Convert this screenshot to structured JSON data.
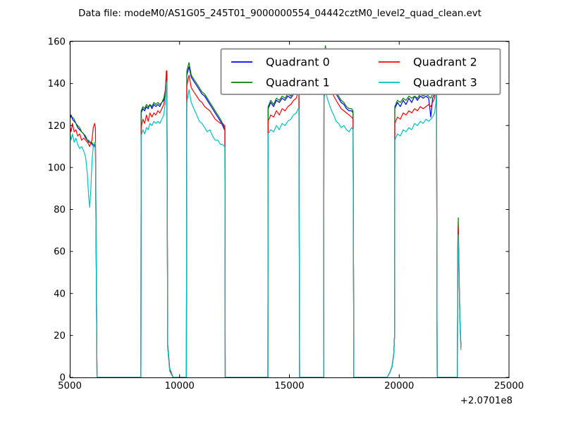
{
  "figure": {
    "title": "Data file: modeM0/AS1G05_245T01_9000000554_04442cztM0_level2_quad_clean.evt",
    "background": "#ffffff"
  },
  "chart_data": {
    "type": "line",
    "title": "Data file: modeM0/AS1G05_245T01_9000000554_04442cztM0_level2_quad_clean.evt",
    "xlabel": "",
    "ylabel": "",
    "grid": false,
    "legend_position": "upper center, 2 columns, framed",
    "xlim": [
      5000,
      25000
    ],
    "ylim": [
      0,
      160
    ],
    "x_ticks": [
      5000,
      10000,
      15000,
      20000,
      25000
    ],
    "y_ticks": [
      0,
      20,
      40,
      60,
      80,
      100,
      120,
      140,
      160
    ],
    "x_offset": "+2.0701e8",
    "series": [
      {
        "name": "Quadrant 0",
        "color": "#0000ff"
      },
      {
        "name": "Quadrant 1",
        "color": "#008000"
      },
      {
        "name": "Quadrant 2",
        "color": "#ff0000"
      },
      {
        "name": "Quadrant 3",
        "color": "#00bfbf"
      }
    ],
    "bursts": [
      {
        "x": [
          5000,
          5060,
          5120,
          5200,
          5280,
          5360,
          5450,
          5540,
          5630,
          5720,
          5800,
          5860,
          5910,
          5960,
          6010,
          6070,
          6130,
          6170,
          6240
        ],
        "values": [
          [
            123,
            125,
            123,
            122,
            121,
            119,
            118,
            117,
            116,
            114,
            113,
            112,
            112,
            112,
            111,
            111,
            110,
            110,
            0
          ],
          [
            124,
            124,
            124,
            123,
            121,
            120,
            119,
            117,
            116,
            115,
            113,
            113,
            112,
            112,
            112,
            110,
            111,
            110,
            0
          ],
          [
            120,
            117,
            121,
            117,
            118,
            115,
            116,
            113,
            114,
            113,
            112,
            111,
            110,
            112,
            113,
            119,
            121,
            119,
            0
          ],
          [
            117,
            113,
            116,
            112,
            114,
            111,
            109,
            110,
            108,
            105,
            97,
            86,
            81,
            90,
            103,
            110,
            112,
            112,
            0
          ]
        ]
      },
      {
        "x": [
          8240,
          8250,
          8330,
          8410,
          8490,
          8570,
          8650,
          8740,
          8830,
          8920,
          9010,
          9100,
          9190,
          9280,
          9350,
          9395,
          9420,
          9460,
          9550,
          9700
        ],
        "values": [
          [
            0,
            126,
            128,
            127,
            129,
            128,
            130,
            128,
            130,
            129,
            130,
            129,
            131,
            132,
            136,
            143,
            144,
            15,
            4,
            0
          ],
          [
            0,
            127,
            129,
            128,
            130,
            129,
            130,
            129,
            131,
            130,
            131,
            130,
            131,
            133,
            137,
            144,
            145,
            15,
            4,
            0
          ],
          [
            0,
            119,
            123,
            121,
            125,
            122,
            126,
            124,
            126,
            125,
            127,
            126,
            128,
            130,
            135,
            146,
            146,
            16,
            4,
            0
          ],
          [
            0,
            115,
            118,
            116,
            119,
            118,
            121,
            120,
            122,
            121,
            122,
            121,
            123,
            125,
            131,
            140,
            141,
            14,
            3,
            0
          ]
        ]
      },
      {
        "x": [
          10310,
          10330,
          10430,
          10530,
          10650,
          10780,
          10900,
          11020,
          11140,
          11260,
          11380,
          11500,
          11620,
          11740,
          11860,
          11960,
          12040,
          12062,
          12080
        ],
        "values": [
          [
            0,
            144,
            148,
            143,
            141,
            139,
            137,
            135,
            134,
            132,
            130,
            128,
            126,
            124,
            122,
            120,
            118,
            118,
            0
          ],
          [
            0,
            146,
            150,
            144,
            142,
            140,
            138,
            136,
            135,
            133,
            131,
            129,
            127,
            125,
            123,
            121,
            119,
            119,
            0
          ],
          [
            0,
            139,
            144,
            138,
            136,
            134,
            132,
            131,
            129,
            128,
            127,
            125,
            123,
            122,
            121,
            121,
            120,
            120,
            0
          ],
          [
            0,
            131,
            137,
            131,
            128,
            125,
            122,
            121,
            119,
            117,
            118,
            115,
            113,
            113,
            111,
            111,
            110,
            110,
            0
          ]
        ]
      },
      {
        "x": [
          14020,
          14030,
          14150,
          14280,
          14410,
          14540,
          14670,
          14800,
          14930,
          15060,
          15190,
          15310,
          15400,
          15433,
          15465
        ],
        "values": [
          [
            0,
            128,
            131,
            129,
            132,
            131,
            133,
            132,
            134,
            133,
            135,
            136,
            137,
            137,
            0
          ],
          [
            0,
            129,
            132,
            130,
            133,
            132,
            134,
            133,
            135,
            134,
            136,
            137,
            141,
            139,
            0
          ],
          [
            0,
            122,
            125,
            124,
            127,
            125,
            128,
            127,
            129,
            130,
            132,
            133,
            136,
            136,
            0
          ],
          [
            0,
            116,
            118,
            117,
            120,
            118,
            121,
            120,
            122,
            123,
            125,
            126,
            128,
            128,
            0
          ]
        ]
      },
      {
        "x": [
          16560,
          16575,
          16640,
          16720,
          16820,
          16920,
          17020,
          17130,
          17240,
          17360,
          17480,
          17600,
          17720,
          17830,
          17900,
          17935
        ],
        "values": [
          [
            0,
            148,
            152,
            147,
            143,
            140,
            137,
            135,
            133,
            131,
            130,
            128,
            127,
            127,
            126,
            0
          ],
          [
            0,
            152,
            158,
            151,
            146,
            142,
            139,
            136,
            134,
            132,
            131,
            129,
            128,
            128,
            127,
            0
          ],
          [
            0,
            144,
            148,
            143,
            139,
            136,
            134,
            132,
            130,
            128,
            127,
            126,
            125,
            124,
            123,
            0
          ],
          [
            0,
            133,
            137,
            133,
            130,
            127,
            125,
            122,
            121,
            119,
            120,
            118,
            117,
            119,
            118,
            0
          ]
        ]
      },
      {
        "x": [
          19450,
          19560,
          19670,
          19750,
          19790,
          19800,
          19920,
          20050,
          20180,
          20310,
          20440,
          20570,
          20700,
          20830,
          20960,
          21090,
          21220,
          21340,
          21440,
          21520,
          21610,
          21670,
          21695,
          21700,
          21730
        ],
        "values": [
          [
            0,
            2,
            5,
            11,
            20,
            128,
            131,
            129,
            132,
            130,
            133,
            131,
            134,
            132,
            134,
            133,
            134,
            133,
            124,
            133,
            135,
            138,
            140,
            139,
            0
          ],
          [
            0,
            2,
            5,
            11,
            20,
            129,
            132,
            131,
            133,
            132,
            134,
            133,
            134,
            133,
            135,
            134,
            135,
            134,
            133,
            135,
            137,
            139,
            141,
            140,
            0
          ],
          [
            0,
            2,
            5,
            11,
            20,
            121,
            124,
            123,
            126,
            125,
            127,
            126,
            128,
            127,
            129,
            128,
            129,
            130,
            129,
            131,
            133,
            138,
            143,
            141,
            0
          ],
          [
            0,
            2,
            5,
            11,
            20,
            113,
            116,
            115,
            118,
            117,
            119,
            118,
            121,
            120,
            122,
            121,
            123,
            122,
            123,
            124,
            126,
            131,
            137,
            136,
            0
          ]
        ]
      },
      {
        "x": [
          22650,
          22670,
          22690,
          22730,
          22770,
          22810
        ],
        "values": [
          [
            0,
            60,
            70,
            45,
            26,
            14
          ],
          [
            0,
            66,
            76,
            48,
            27,
            15
          ],
          [
            0,
            62,
            72,
            46,
            26,
            14
          ],
          [
            0,
            57,
            68,
            44,
            25,
            13
          ]
        ]
      }
    ]
  }
}
